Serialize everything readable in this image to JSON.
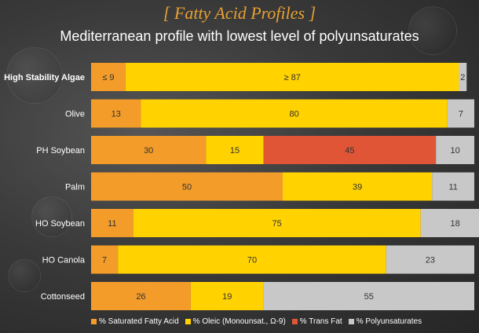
{
  "title": "[ Fatty Acid Profiles ]",
  "subtitle": "Mediterranean profile with lowest level of polyunsaturates",
  "chart_data": {
    "type": "bar",
    "orientation": "horizontal",
    "stacked": true,
    "categories": [
      "High Stability Algae",
      "Olive",
      "PH Soybean",
      "Palm",
      "HO Soybean",
      "HO Canola",
      "Cottonseed"
    ],
    "bold_categories": [
      "High Stability Algae"
    ],
    "series": [
      {
        "name": "% Saturated Fatty Acid",
        "color": "#f39c2a",
        "values": [
          9,
          13,
          30,
          50,
          11,
          7,
          26
        ],
        "labels": [
          "≤ 9",
          "13",
          "30",
          "50",
          "11",
          "7",
          "26"
        ]
      },
      {
        "name": "% Oleic (Monounsat., Ω-9)",
        "color": "#ffd200",
        "values": [
          87,
          80,
          15,
          39,
          75,
          70,
          19
        ],
        "labels": [
          "≥ 87",
          "80",
          "15",
          "39",
          "75",
          "70",
          "19"
        ]
      },
      {
        "name": "% Trans Fat",
        "color": "#e05535",
        "values": [
          0,
          0,
          45,
          0,
          0,
          0,
          0
        ],
        "labels": [
          "",
          "",
          "45",
          "",
          "",
          "",
          ""
        ]
      },
      {
        "name": "% Polyunsaturates",
        "color": "#c8c8c8",
        "values": [
          2,
          7,
          10,
          11,
          18,
          23,
          55
        ],
        "labels": [
          "2",
          "7",
          "10",
          "11",
          "18",
          "23",
          "55"
        ]
      }
    ],
    "xlim": [
      0,
      100
    ],
    "legend_position": "bottom"
  }
}
